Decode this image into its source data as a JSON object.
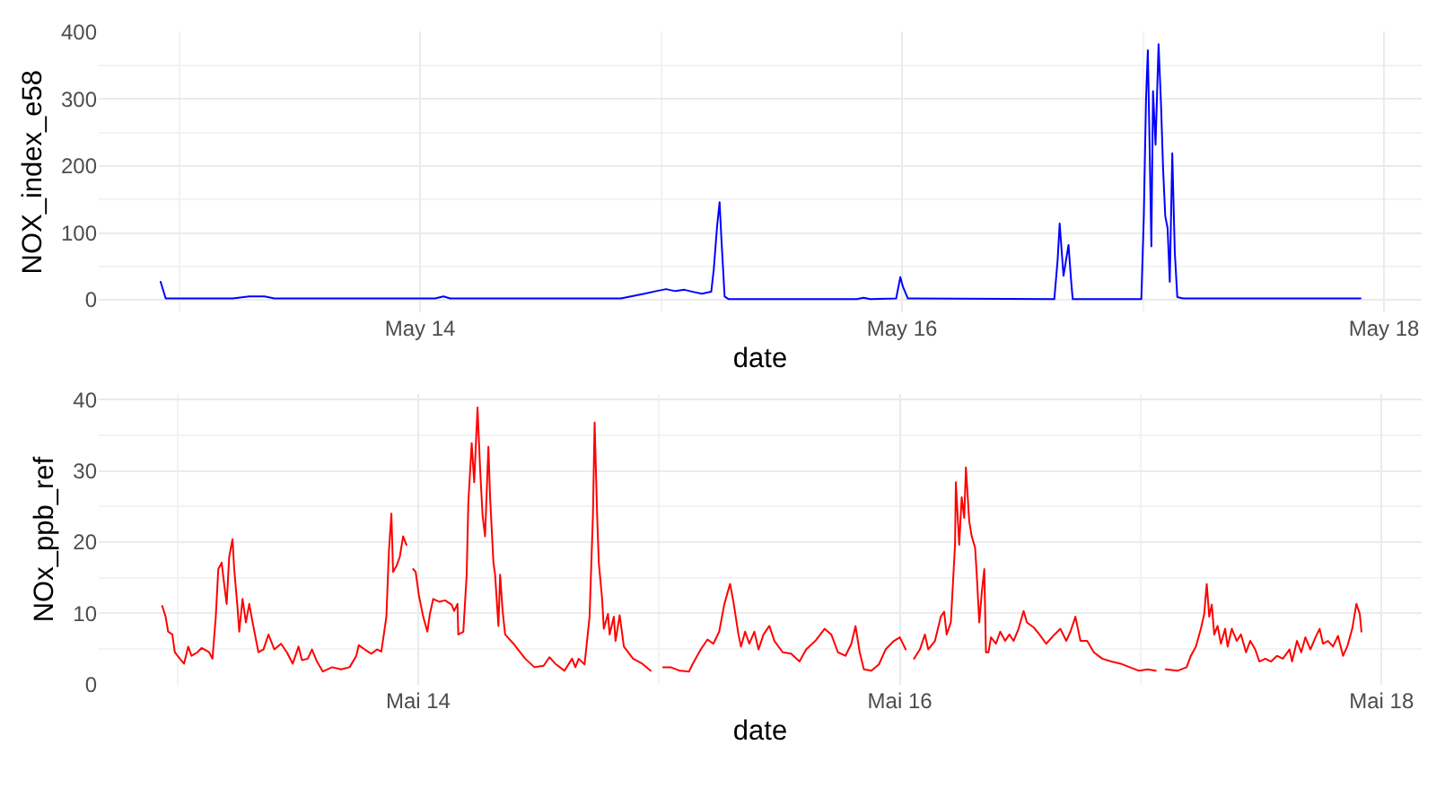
{
  "chart_data": [
    {
      "type": "line",
      "xlabel": "date",
      "ylabel": "NOX_index_e58",
      "color": "#0000ff",
      "grid": true,
      "xlim": [
        "--05-12T16:00",
        "--05-18T03:45"
      ],
      "xticks": [
        {
          "value": "--05-13",
          "label": null
        },
        {
          "value": "--05-14",
          "label": "May 14"
        },
        {
          "value": "--05-15",
          "label": null
        },
        {
          "value": "--05-16",
          "label": "May 16"
        },
        {
          "value": "--05-17",
          "label": null
        },
        {
          "value": "--05-18",
          "label": "May 18"
        }
      ],
      "ylim": [
        -19,
        401
      ],
      "yticks": [
        0,
        {
          "value": 50,
          "label": null
        },
        100,
        {
          "value": 150,
          "label": null
        },
        200,
        {
          "value": 250,
          "label": null
        },
        300,
        {
          "value": 350,
          "label": null
        },
        400
      ],
      "x": [
        "--05-12T22:10",
        "--05-12T22:40",
        "--05-13T05:20",
        "--05-13T07:00",
        "--05-13T08:30",
        "--05-13T09:30",
        "--05-14T01:30",
        "--05-14T02:20",
        "--05-14T03:00",
        "--05-14T20:00",
        "--05-14T21:00",
        "--05-14T22:20",
        "--05-14T23:30",
        "--05-15T00:30",
        "--05-15T01:25",
        "--05-15T02:20",
        "--05-15T03:10",
        "--05-15T04:05",
        "--05-15T04:40",
        "--05-15T05:00",
        "--05-15T05:15",
        "--05-15T05:35",
        "--05-15T05:50",
        "--05-15T06:00",
        "--05-15T06:20",
        "--05-15T06:45",
        "--05-15T19:30",
        "--05-15T20:10",
        "--05-15T20:50",
        "--05-15T23:25",
        "--05-15T23:50",
        "--05-16T00:05",
        "--05-16T00:35",
        "--05-16T15:10",
        "--05-16T15:30",
        "--05-16T15:42",
        "--05-16T16:05",
        "--05-16T16:35",
        "--05-16T16:50",
        "--05-16T17:00",
        "--05-16T23:50",
        "--05-17T00:05",
        "--05-17T00:18",
        "--05-17T00:29",
        "--05-17T00:40",
        "--05-17T00:50",
        "--05-17T01:00",
        "--05-17T01:15",
        "--05-17T01:33",
        "--05-17T01:48",
        "--05-17T02:00",
        "--05-17T02:13",
        "--05-17T02:27",
        "--05-17T02:40",
        "--05-17T02:55",
        "--05-17T03:10",
        "--05-17T03:25",
        "--05-17T04:00",
        "--05-17T21:40"
      ],
      "values": [
        27,
        2,
        2,
        5,
        5,
        2,
        2,
        5,
        2,
        2,
        5,
        9,
        13,
        16,
        13,
        15,
        12,
        9,
        11,
        12,
        45,
        110,
        146,
        95,
        5,
        1,
        1,
        3,
        1,
        2,
        34,
        20,
        2,
        1,
        60,
        114,
        36,
        82,
        30,
        1,
        1,
        125,
        300,
        373,
        223,
        80,
        312,
        232,
        382,
        290,
        196,
        125,
        107,
        27,
        219,
        71,
        4,
        2,
        2
      ]
    },
    {
      "type": "line",
      "xlabel": "date",
      "ylabel": "NOx_ppb_ref",
      "color": "#ff0000",
      "grid": true,
      "xlim": [
        "--05-12T16:10",
        "--05-18T04:00"
      ],
      "xticks": [
        {
          "value": "--05-13",
          "label": null
        },
        {
          "value": "--05-14",
          "label": "Mai 14"
        },
        {
          "value": "--05-15",
          "label": null
        },
        {
          "value": "--05-16",
          "label": "Mai 16"
        },
        {
          "value": "--05-17",
          "label": null
        },
        {
          "value": "--05-18",
          "label": "Mai 18"
        }
      ],
      "ylim": [
        -0.1,
        40.8
      ],
      "yticks": [
        0,
        {
          "value": 5,
          "label": null
        },
        10,
        {
          "value": 15,
          "label": null
        },
        20,
        {
          "value": 25,
          "label": null
        },
        30,
        {
          "value": 35,
          "label": null
        },
        40
      ],
      "x": [
        "--05-12T22:30",
        "--05-12T22:50",
        "--05-12T23:05",
        "--05-12T23:30",
        "--05-12T23:45",
        "--05-13T00:15",
        "--05-13T00:40",
        "--05-13T01:05",
        "--05-13T01:25",
        "--05-13T02:00",
        "--05-13T02:25",
        "--05-13T03:10",
        "--05-13T03:30",
        "--05-13T03:50",
        "--05-13T04:05",
        "--05-13T04:25",
        "--05-13T04:40",
        "--05-13T04:55",
        "--05-13T05:10",
        "--05-13T05:30",
        "--05-13T05:40",
        "--05-13T06:00",
        "--05-13T06:10",
        "--05-13T06:30",
        "--05-13T06:50",
        "--05-13T07:10",
        "--05-13T07:30",
        "--05-13T08:05",
        "--05-13T08:35",
        "--05-13T09:05",
        "--05-13T09:40",
        "--05-13T10:20",
        "--05-13T10:55",
        "--05-13T11:30",
        "--05-13T12:05",
        "--05-13T12:25",
        "--05-13T13:00",
        "--05-13T13:25",
        "--05-13T13:55",
        "--05-13T14:30",
        "--05-13T15:25",
        "--05-13T16:20",
        "--05-13T17:10",
        "--05-13T17:50",
        "--05-13T18:05",
        "--05-13T18:40",
        "--05-13T19:20",
        "--05-13T19:55",
        "--05-13T20:20",
        "--05-13T20:50",
        "--05-13T21:05",
        "--05-13T21:20",
        "--05-13T21:30",
        "--05-13T21:50",
        "--05-13T22:10",
        "--05-13T22:30",
        "--05-13T22:50",
        "--05-13T23:10",
        "--05-13T23:30",
        "--05-13T23:45",
        "--05-14T00:05",
        "--05-14T00:30",
        "--05-14T00:55",
        "--05-14T01:10",
        "--05-14T01:30",
        "--05-14T02:05",
        "--05-14T02:40",
        "--05-14T03:20",
        "--05-14T03:35",
        "--05-14T03:55",
        "--05-14T04:00",
        "--05-14T04:30",
        "--05-14T04:50",
        "--05-14T05:00",
        "--05-14T05:20",
        "--05-14T05:35",
        "--05-14T05:55",
        "--05-14T06:10",
        "--05-14T06:25",
        "--05-14T06:40",
        "--05-14T07:00",
        "--05-14T07:10",
        "--05-14T07:30",
        "--05-14T07:40",
        "--05-14T08:00",
        "--05-14T08:10",
        "--05-14T08:25",
        "--05-14T08:40",
        "--05-14T09:30",
        "--05-14T10:40",
        "--05-14T11:35",
        "--05-14T12:30",
        "--05-14T13:05",
        "--05-14T13:40",
        "--05-14T14:35",
        "--05-14T15:20",
        "--05-14T15:40",
        "--05-14T16:00",
        "--05-14T16:35",
        "--05-14T17:05",
        "--05-14T17:25",
        "--05-14T17:35",
        "--05-14T17:50",
        "--05-14T18:00",
        "--05-14T18:20",
        "--05-14T18:30",
        "--05-14T18:55",
        "--05-14T19:05",
        "--05-14T19:30",
        "--05-14T19:40",
        "--05-14T20:05",
        "--05-14T20:30",
        "--05-14T21:25",
        "--05-14T22:20",
        "--05-14T23:10",
        "--05-14T23:45",
        "--05-15T00:25",
        "--05-15T01:10",
        "--05-15T02:05",
        "--05-15T03:00",
        "--05-15T03:20",
        "--05-15T04:10",
        "--05-15T04:50",
        "--05-15T05:25",
        "--05-15T06:00",
        "--05-15T06:30",
        "--05-15T06:50",
        "--05-15T07:05",
        "--05-15T07:25",
        "--05-15T07:55",
        "--05-15T08:10",
        "--05-15T08:35",
        "--05-15T09:00",
        "--05-15T09:30",
        "--05-15T09:55",
        "--05-15T10:25",
        "--05-15T11:00",
        "--05-15T11:30",
        "--05-15T12:20",
        "--05-15T13:10",
        "--05-15T14:00",
        "--05-15T14:40",
        "--05-15T15:35",
        "--05-15T16:30",
        "--05-15T17:10",
        "--05-15T17:50",
        "--05-15T18:35",
        "--05-15T19:10",
        "--05-15T19:35",
        "--05-15T20:00",
        "--05-15T20:25",
        "--05-15T21:10",
        "--05-15T21:55",
        "--05-15T22:35",
        "--05-15T23:25",
        "--05-16T00:00",
        "--05-16T00:35",
        "--05-16T01:00",
        "--05-16T01:25",
        "--05-16T02:00",
        "--05-16T02:30",
        "--05-16T02:50",
        "--05-16T03:30",
        "--05-16T04:05",
        "--05-16T04:25",
        "--05-16T04:40",
        "--05-16T05:05",
        "--05-16T05:30",
        "--05-16T05:35",
        "--05-16T05:55",
        "--05-16T06:10",
        "--05-16T06:25",
        "--05-16T06:35",
        "--05-16T06:55",
        "--05-16T07:10",
        "--05-16T07:30",
        "--05-16T07:40",
        "--05-16T07:55",
        "--05-16T08:10",
        "--05-16T08:25",
        "--05-16T08:35",
        "--05-16T08:50",
        "--05-16T09:05",
        "--05-16T09:35",
        "--05-16T10:00",
        "--05-16T10:30",
        "--05-16T10:55",
        "--05-16T11:20",
        "--05-16T11:50",
        "--05-16T12:20",
        "--05-16T12:40",
        "--05-16T13:20",
        "--05-16T13:55",
        "--05-16T14:35",
        "--05-16T15:25",
        "--05-16T16:00",
        "--05-16T16:35",
        "--05-16T17:00",
        "--05-16T17:30",
        "--05-16T18:00",
        "--05-16T18:40",
        "--05-16T19:20",
        "--05-16T20:10",
        "--05-16T21:05",
        "--05-16T22:00",
        "--05-16T22:55",
        "--05-16T23:50",
        "--05-17T00:40",
        "--05-17T01:30",
        "--05-17T02:00",
        "--05-17T02:30",
        "--05-17T03:40",
        "--05-17T04:35",
        "--05-17T05:00",
        "--05-17T05:30",
        "--05-17T06:00",
        "--05-17T06:20",
        "--05-17T06:35",
        "--05-17T06:50",
        "--05-17T07:05",
        "--05-17T07:20",
        "--05-17T07:40",
        "--05-17T08:00",
        "--05-17T08:25",
        "--05-17T08:40",
        "--05-17T09:05",
        "--05-17T09:35",
        "--05-17T10:00",
        "--05-17T10:30",
        "--05-17T10:55",
        "--05-17T11:25",
        "--05-17T11:50",
        "--05-17T12:25",
        "--05-17T13:00",
        "--05-17T13:35",
        "--05-17T14:10",
        "--05-17T14:50",
        "--05-17T15:05",
        "--05-17T15:35",
        "--05-17T16:00",
        "--05-17T16:25",
        "--05-17T16:55",
        "--05-17T17:25",
        "--05-17T17:50",
        "--05-17T18:10",
        "--05-17T18:40",
        "--05-17T19:10",
        "--05-17T19:40",
        "--05-17T20:10",
        "--05-17T20:35",
        "--05-17T21:05",
        "--05-17T21:30",
        "--05-17T21:50",
        "--05-17T22:00"
      ],
      "values": [
        11.0,
        9.5,
        7.4,
        7.0,
        4.5,
        3.6,
        2.9,
        5.3,
        4.0,
        4.5,
        5.1,
        4.5,
        3.6,
        9.5,
        16.2,
        17.1,
        14.1,
        11.3,
        17.9,
        20.4,
        16.2,
        10.8,
        7.4,
        12.0,
        8.7,
        11.3,
        8.7,
        4.5,
        4.9,
        7.0,
        4.9,
        5.7,
        4.5,
        2.9,
        5.3,
        3.4,
        3.6,
        4.9,
        3.2,
        1.8,
        2.4,
        2.1,
        2.4,
        4.0,
        5.5,
        4.9,
        4.3,
        4.9,
        4.6,
        9.5,
        18.7,
        24.0,
        15.8,
        16.6,
        17.9,
        20.8,
        19.6,
        null,
        16.2,
        15.8,
        12.4,
        9.5,
        7.4,
        9.9,
        12.0,
        11.6,
        11.8,
        11.2,
        10.3,
        11.3,
        7.0,
        7.4,
        15.4,
        25.5,
        33.9,
        28.4,
        38.9,
        30.5,
        23.8,
        20.8,
        33.4,
        26.3,
        17.1,
        15.4,
        8.2,
        15.4,
        10.3,
        7.0,
        5.7,
        3.6,
        2.4,
        2.6,
        3.8,
        2.9,
        1.9,
        3.6,
        2.4,
        3.6,
        2.8,
        9.5,
        23.8,
        36.8,
        23.8,
        17.1,
        12.0,
        7.8,
        9.9,
        7.0,
        9.5,
        6.1,
        9.7,
        5.3,
        3.6,
        2.9,
        1.9,
        null,
        2.4,
        2.4,
        1.9,
        1.8,
        2.8,
        4.9,
        6.3,
        5.7,
        7.4,
        11.2,
        12.9,
        14.1,
        11.6,
        7.0,
        5.3,
        7.4,
        5.7,
        7.4,
        4.9,
        7.0,
        8.2,
        6.1,
        4.5,
        4.3,
        3.2,
        4.9,
        6.1,
        7.8,
        7.0,
        4.5,
        4.0,
        5.7,
        8.2,
        4.5,
        2.1,
        1.9,
        2.8,
        4.9,
        6.1,
        6.6,
        4.9,
        null,
        3.6,
        4.9,
        7.0,
        4.9,
        6.1,
        9.5,
        10.2,
        7.0,
        8.7,
        19.6,
        28.4,
        19.6,
        26.3,
        23.4,
        30.5,
        22.9,
        20.8,
        19.2,
        15.4,
        8.7,
        12.9,
        16.2,
        4.5,
        4.5,
        6.6,
        5.7,
        7.4,
        6.1,
        7.0,
        6.1,
        7.8,
        10.3,
        8.7,
        8.0,
        7.0,
        5.7,
        7.0,
        7.8,
        6.1,
        7.4,
        9.5,
        6.1,
        6.1,
        4.5,
        3.6,
        3.2,
        2.9,
        2.4,
        1.9,
        2.1,
        1.9,
        null,
        2.1,
        1.9,
        2.4,
        4.0,
        5.3,
        7.8,
        9.9,
        14.1,
        9.5,
        11.2,
        7.0,
        8.2,
        5.7,
        7.8,
        5.3,
        7.8,
        6.1,
        7.0,
        4.5,
        6.1,
        4.9,
        3.2,
        3.6,
        3.2,
        4.0,
        3.6,
        4.9,
        3.2,
        6.1,
        4.5,
        6.6,
        4.9,
        6.6,
        7.8,
        5.7,
        6.1,
        5.3,
        6.8,
        4.0,
        5.3,
        7.8,
        11.3,
        9.9,
        7.4
      ]
    }
  ]
}
